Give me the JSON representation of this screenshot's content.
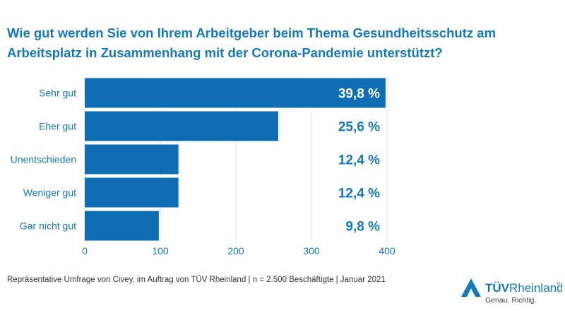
{
  "title": "Wie gut werden Sie von Ihrem Arbeitgeber beim Thema Gesundheitsschutz am Arbeitsplatz in Zusammenhang mit der Corona-Pandemie unterstützt?",
  "footnote": "Repräsentative Umfrage von Civey, im Auftrag von TÜV Rheinland | n = 2.500 Beschäftigte | Januar 2021",
  "logo": {
    "brand_bold": "TÜV",
    "brand_regular": "Rheinland",
    "registered": "®",
    "tagline": "Genau. Richtig.",
    "icon": "triangle-logo-icon"
  },
  "colors": {
    "bar": "#0f6db3",
    "title": "#1479b8",
    "value_label": "#1479b8",
    "category_label": "#1479b8",
    "grid": "#e3e3e3"
  },
  "chart_data": {
    "type": "bar",
    "orientation": "horizontal",
    "categories": [
      "Sehr gut",
      "Eher gut",
      "Unentschieden",
      "Weniger gut",
      "Gar nicht gut"
    ],
    "values": [
      398,
      256,
      124,
      124,
      98
    ],
    "value_labels": [
      "39,8 %",
      "25,6 %",
      "12,4 %",
      "12,4 %",
      "9,8 %"
    ],
    "xlim": [
      0,
      400
    ],
    "xticks": [
      0,
      100,
      200,
      300,
      400
    ],
    "xlabel": "",
    "ylabel": "",
    "grid": true,
    "legend": "none"
  }
}
